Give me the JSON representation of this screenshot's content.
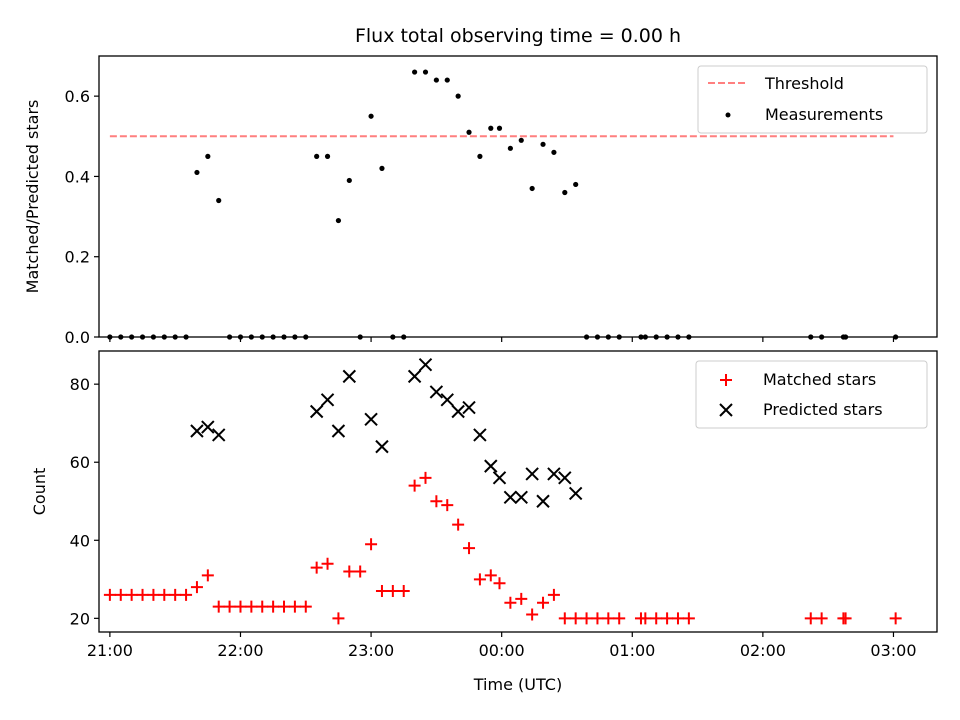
{
  "chart_data": [
    {
      "type": "scatter",
      "title": "Flux total observing time = 0.00 h",
      "xlabel": "",
      "ylabel": "Matched/Predicted stars",
      "xlim": [
        "20:55",
        "03:20"
      ],
      "ylim": [
        0,
        0.7
      ],
      "x_tick_labels_visible": false,
      "x_ticks": [
        "21:00",
        "22:00",
        "23:00",
        "00:00",
        "01:00",
        "02:00",
        "03:00"
      ],
      "y_ticks": [
        "0.0",
        "0.2",
        "0.4",
        "0.6"
      ],
      "y_tick_values": [
        0,
        0.2,
        0.4,
        0.6
      ],
      "legend_position": "top-right",
      "series": [
        {
          "name": "Threshold",
          "kind": "dashed-line",
          "color": "#ff7f7f",
          "x": [
            "21:00",
            "03:00"
          ],
          "y": [
            0.5,
            0.5
          ]
        },
        {
          "name": "Measurements",
          "kind": "dots",
          "color": "#000000",
          "points": [
            [
              "21:00",
              0
            ],
            [
              "21:05",
              0
            ],
            [
              "21:10",
              0
            ],
            [
              "21:15",
              0
            ],
            [
              "21:20",
              0
            ],
            [
              "21:25",
              0
            ],
            [
              "21:30",
              0
            ],
            [
              "21:35",
              0
            ],
            [
              "21:40",
              0.41
            ],
            [
              "21:45",
              0.45
            ],
            [
              "21:50",
              0.34
            ],
            [
              "21:55",
              0
            ],
            [
              "22:00",
              0
            ],
            [
              "22:05",
              0
            ],
            [
              "22:10",
              0
            ],
            [
              "22:15",
              0
            ],
            [
              "22:20",
              0
            ],
            [
              "22:25",
              0
            ],
            [
              "22:30",
              0
            ],
            [
              "22:35",
              0.45
            ],
            [
              "22:40",
              0.45
            ],
            [
              "22:45",
              0.29
            ],
            [
              "22:50",
              0.39
            ],
            [
              "22:55",
              0
            ],
            [
              "23:00",
              0.55
            ],
            [
              "23:05",
              0.42
            ],
            [
              "23:10",
              0
            ],
            [
              "23:15",
              0
            ],
            [
              "23:20",
              0.66
            ],
            [
              "23:25",
              0.66
            ],
            [
              "23:30",
              0.64
            ],
            [
              "23:35",
              0.64
            ],
            [
              "23:40",
              0.6
            ],
            [
              "23:45",
              0.51
            ],
            [
              "23:50",
              0.45
            ],
            [
              "23:55",
              0.52
            ],
            [
              "23:59",
              0.52
            ],
            [
              "00:04",
              0.47
            ],
            [
              "00:09",
              0.49
            ],
            [
              "00:14",
              0.37
            ],
            [
              "00:19",
              0.48
            ],
            [
              "00:24",
              0.46
            ],
            [
              "00:29",
              0.36
            ],
            [
              "00:34",
              0.38
            ],
            [
              "00:39",
              0
            ],
            [
              "00:44",
              0
            ],
            [
              "00:49",
              0
            ],
            [
              "00:54",
              0
            ],
            [
              "01:04",
              0
            ],
            [
              "01:06",
              0
            ],
            [
              "01:11",
              0
            ],
            [
              "01:16",
              0
            ],
            [
              "01:21",
              0
            ],
            [
              "01:26",
              0
            ],
            [
              "02:22",
              0
            ],
            [
              "02:27",
              0
            ],
            [
              "02:37",
              0
            ],
            [
              "02:38",
              0
            ],
            [
              "03:01",
              0
            ]
          ]
        }
      ]
    },
    {
      "type": "scatter",
      "title": "",
      "xlabel": "Time (UTC)",
      "ylabel": "Count",
      "xlim": [
        "20:55",
        "03:20"
      ],
      "ylim": [
        16.5,
        88.5
      ],
      "x_ticks": [
        "21:00",
        "22:00",
        "23:00",
        "00:00",
        "01:00",
        "02:00",
        "03:00"
      ],
      "y_ticks": [
        "20",
        "40",
        "60",
        "80"
      ],
      "y_tick_values": [
        20,
        40,
        60,
        80
      ],
      "legend_position": "top-right",
      "series": [
        {
          "name": "Matched stars",
          "marker": "+",
          "color": "#ff0000",
          "points": [
            [
              "21:00",
              26
            ],
            [
              "21:05",
              26
            ],
            [
              "21:10",
              26
            ],
            [
              "21:15",
              26
            ],
            [
              "21:20",
              26
            ],
            [
              "21:25",
              26
            ],
            [
              "21:30",
              26
            ],
            [
              "21:35",
              26
            ],
            [
              "21:40",
              28
            ],
            [
              "21:45",
              31
            ],
            [
              "21:50",
              23
            ],
            [
              "21:55",
              23
            ],
            [
              "22:00",
              23
            ],
            [
              "22:05",
              23
            ],
            [
              "22:10",
              23
            ],
            [
              "22:15",
              23
            ],
            [
              "22:20",
              23
            ],
            [
              "22:25",
              23
            ],
            [
              "22:30",
              23
            ],
            [
              "22:35",
              33
            ],
            [
              "22:40",
              34
            ],
            [
              "22:45",
              20
            ],
            [
              "22:50",
              32
            ],
            [
              "22:55",
              32
            ],
            [
              "23:00",
              39
            ],
            [
              "23:05",
              27
            ],
            [
              "23:10",
              27
            ],
            [
              "23:15",
              27
            ],
            [
              "23:20",
              54
            ],
            [
              "23:25",
              56
            ],
            [
              "23:30",
              50
            ],
            [
              "23:35",
              49
            ],
            [
              "23:40",
              44
            ],
            [
              "23:45",
              38
            ],
            [
              "23:50",
              30
            ],
            [
              "23:55",
              31
            ],
            [
              "23:59",
              29
            ],
            [
              "00:04",
              24
            ],
            [
              "00:09",
              25
            ],
            [
              "00:14",
              21
            ],
            [
              "00:19",
              24
            ],
            [
              "00:24",
              26
            ],
            [
              "00:29",
              20
            ],
            [
              "00:34",
              20
            ],
            [
              "00:39",
              20
            ],
            [
              "00:44",
              20
            ],
            [
              "00:49",
              20
            ],
            [
              "00:54",
              20
            ],
            [
              "01:04",
              20
            ],
            [
              "01:06",
              20
            ],
            [
              "01:11",
              20
            ],
            [
              "01:16",
              20
            ],
            [
              "01:21",
              20
            ],
            [
              "01:26",
              20
            ],
            [
              "02:22",
              20
            ],
            [
              "02:27",
              20
            ],
            [
              "02:37",
              20
            ],
            [
              "02:38",
              20
            ],
            [
              "03:01",
              20
            ]
          ]
        },
        {
          "name": "Predicted stars",
          "marker": "x",
          "color": "#000000",
          "points": [
            [
              "21:40",
              68
            ],
            [
              "21:45",
              69
            ],
            [
              "21:50",
              67
            ],
            [
              "22:35",
              73
            ],
            [
              "22:40",
              76
            ],
            [
              "22:45",
              68
            ],
            [
              "22:50",
              82
            ],
            [
              "23:00",
              71
            ],
            [
              "23:05",
              64
            ],
            [
              "23:20",
              82
            ],
            [
              "23:25",
              85
            ],
            [
              "23:30",
              78
            ],
            [
              "23:35",
              76
            ],
            [
              "23:40",
              73
            ],
            [
              "23:45",
              74
            ],
            [
              "23:50",
              67
            ],
            [
              "23:55",
              59
            ],
            [
              "23:59",
              56
            ],
            [
              "00:04",
              51
            ],
            [
              "00:09",
              51
            ],
            [
              "00:14",
              57
            ],
            [
              "00:19",
              50
            ],
            [
              "00:24",
              57
            ],
            [
              "00:29",
              56
            ],
            [
              "00:34",
              52
            ]
          ]
        }
      ]
    }
  ]
}
